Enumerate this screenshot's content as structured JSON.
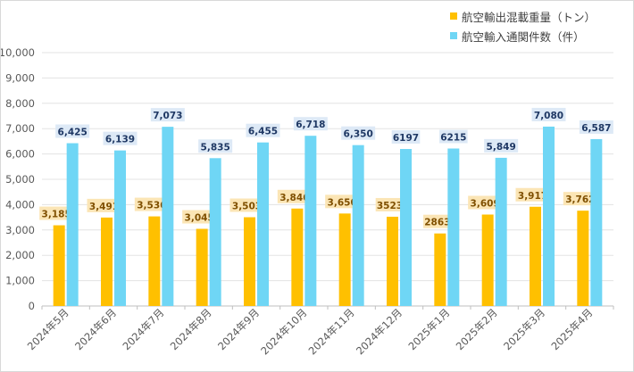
{
  "chart_data": {
    "type": "bar",
    "title": "",
    "xlabel": "",
    "ylabel": "",
    "ylim": [
      0,
      10000
    ],
    "yticks": [
      "0",
      "1,000",
      "2,000",
      "3,000",
      "4,000",
      "5,000",
      "6,000",
      "7,000",
      "8,000",
      "9,000",
      "10,000"
    ],
    "categories": [
      "2024年5月",
      "2024年6月",
      "2024年7月",
      "2024年8月",
      "2024年9月",
      "2024年10月",
      "2024年11月",
      "2024年12月",
      "2025年1月",
      "2025年2月",
      "2025年3月",
      "2025年4月"
    ],
    "series": [
      {
        "name": "航空輸出混載重量（トン）",
        "color": "#ffc000",
        "label_bg": "#fbe5b5",
        "values": [
          3185,
          3491,
          3536,
          3045,
          3503,
          3846,
          3650,
          3523,
          2863,
          3609,
          3917,
          3762
        ],
        "labels": [
          "3,185",
          "3,491",
          "3,536",
          "3,045",
          "3,503",
          "3,846",
          "3,650",
          "3523",
          "2863",
          "3,609",
          "3,917",
          "3,762"
        ]
      },
      {
        "name": "航空輸入通関件数（件）",
        "color": "#6fd6f5",
        "label_bg": "#dde9f6",
        "values": [
          6425,
          6139,
          7073,
          5835,
          6455,
          6718,
          6350,
          6197,
          6215,
          5849,
          7080,
          6587
        ],
        "labels": [
          "6,425",
          "6,139",
          "7,073",
          "5,835",
          "6,455",
          "6,718",
          "6,350",
          "6197",
          "6215",
          "5,849",
          "7,080",
          "6,587"
        ]
      }
    ],
    "grid": true,
    "legend_position": "top-right"
  }
}
